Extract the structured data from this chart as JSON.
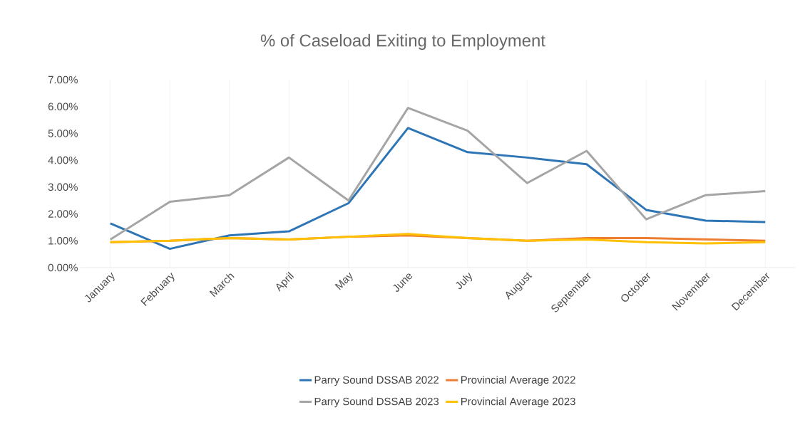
{
  "chart_data": {
    "type": "line",
    "title": "% of Caseload  Exiting to Employment",
    "categories": [
      "January",
      "February",
      "March",
      "April",
      "May",
      "June",
      "July",
      "August",
      "September",
      "October",
      "November",
      "December"
    ],
    "series": [
      {
        "name": "Parry Sound DSSAB 2022",
        "color": "#2e75b6",
        "values": [
          1.65,
          0.7,
          1.2,
          1.35,
          2.4,
          5.2,
          4.3,
          4.1,
          3.85,
          2.15,
          1.75,
          1.7
        ]
      },
      {
        "name": "Provincial Average 2022",
        "color": "#ed7d31",
        "values": [
          0.95,
          1.0,
          1.1,
          1.05,
          1.15,
          1.2,
          1.1,
          1.0,
          1.1,
          1.1,
          1.05,
          1.0
        ]
      },
      {
        "name": "Parry Sound DSSAB 2023",
        "color": "#a5a5a5",
        "values": [
          1.05,
          2.45,
          2.7,
          4.1,
          2.5,
          5.95,
          5.1,
          3.15,
          4.35,
          1.8,
          2.7,
          2.85
        ]
      },
      {
        "name": "Provincial Average 2023",
        "color": "#ffc000",
        "values": [
          0.95,
          1.0,
          1.1,
          1.05,
          1.15,
          1.25,
          1.1,
          1.0,
          1.05,
          0.95,
          0.9,
          0.95
        ]
      }
    ],
    "ylim": [
      0,
      7
    ],
    "yticks": [
      {
        "value": 0,
        "label": "0.00%"
      },
      {
        "value": 1,
        "label": "1.00%"
      },
      {
        "value": 2,
        "label": "2.00%"
      },
      {
        "value": 3,
        "label": "3.00%"
      },
      {
        "value": 4,
        "label": "4.00%"
      },
      {
        "value": 5,
        "label": "5.00%"
      },
      {
        "value": 6,
        "label": "6.00%"
      },
      {
        "value": 7,
        "label": "7.00%"
      }
    ],
    "grid": "x",
    "legend": "bottom",
    "marker": "none",
    "line_style": "solid"
  }
}
